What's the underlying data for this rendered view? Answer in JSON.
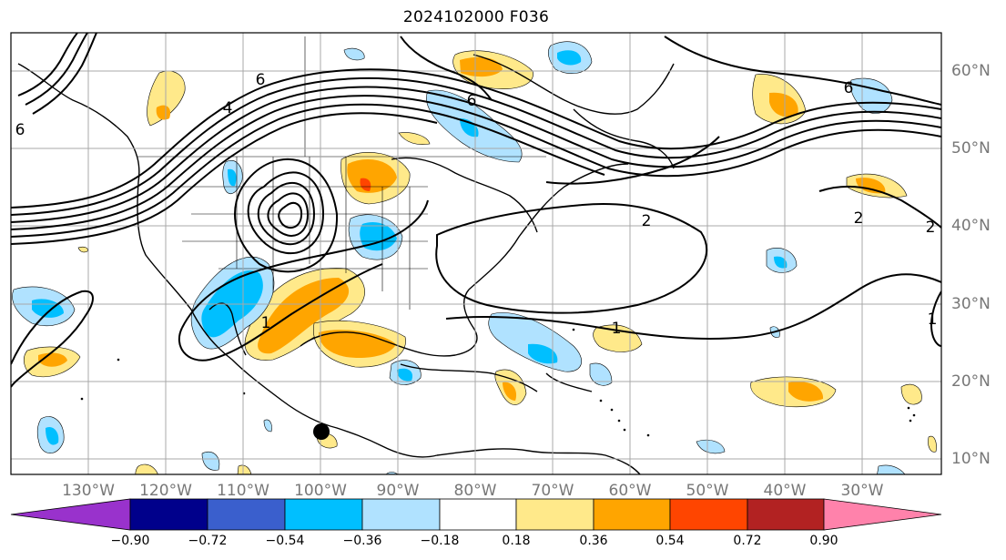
{
  "title": "2024102000 F036",
  "longitude_labels": [
    "130°W",
    "120°W",
    "110°W",
    "100°W",
    "90°W",
    "80°W",
    "70°W",
    "60°W",
    "50°W",
    "40°W",
    "30°W"
  ],
  "latitude_labels": [
    "60°N",
    "50°N",
    "40°N",
    "30°N",
    "20°N",
    "10°N"
  ],
  "contour_labels": [
    "6",
    "6",
    "6",
    "2",
    "2",
    "2",
    "1",
    "1",
    "1",
    "4",
    "6"
  ],
  "colorbar": {
    "ticks": [
      "−0.90",
      "−0.72",
      "−0.54",
      "−0.36",
      "−0.18",
      "0.18",
      "0.36",
      "0.54",
      "0.72",
      "0.90"
    ],
    "colors": [
      "#9932cc",
      "#00008b",
      "#3a5fcd",
      "#00bfff",
      "#b0e2ff",
      "#ffffff",
      "#ffe98a",
      "#ffa500",
      "#ff4500",
      "#b22222",
      "#ff82ab"
    ]
  },
  "palette": {
    "neg_light": "#b0e2ff",
    "neg_mid": "#00bfff",
    "pos_light": "#ffe98a",
    "pos_mid": "#ffa500",
    "pos_strong": "#ff4500"
  }
}
